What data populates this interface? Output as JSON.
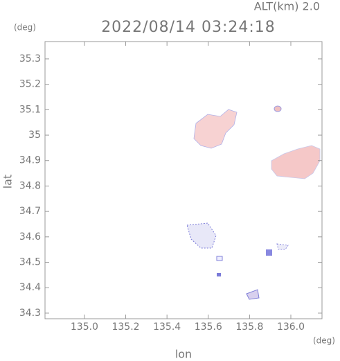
{
  "chart_data": {
    "type": "map",
    "title": "2022/08/14 03:24:18",
    "altitude_label": "ALT(km) 2.0",
    "y_unit": "(deg)",
    "x_unit": "(deg)",
    "xlabel": "lon",
    "ylabel": "lat",
    "xlim": [
      134.809,
      136.151
    ],
    "ylim": [
      34.278,
      35.368
    ],
    "xticks": [
      {
        "value": 135.0,
        "label": "135.0"
      },
      135.2,
      135.4,
      135.6,
      135.8,
      {
        "value": 136.0,
        "label": "136.0"
      }
    ],
    "yticks": [
      34.3,
      34.4,
      34.5,
      34.6,
      34.7,
      34.8,
      34.9,
      35.0,
      35.1,
      35.2,
      35.3
    ]
  }
}
